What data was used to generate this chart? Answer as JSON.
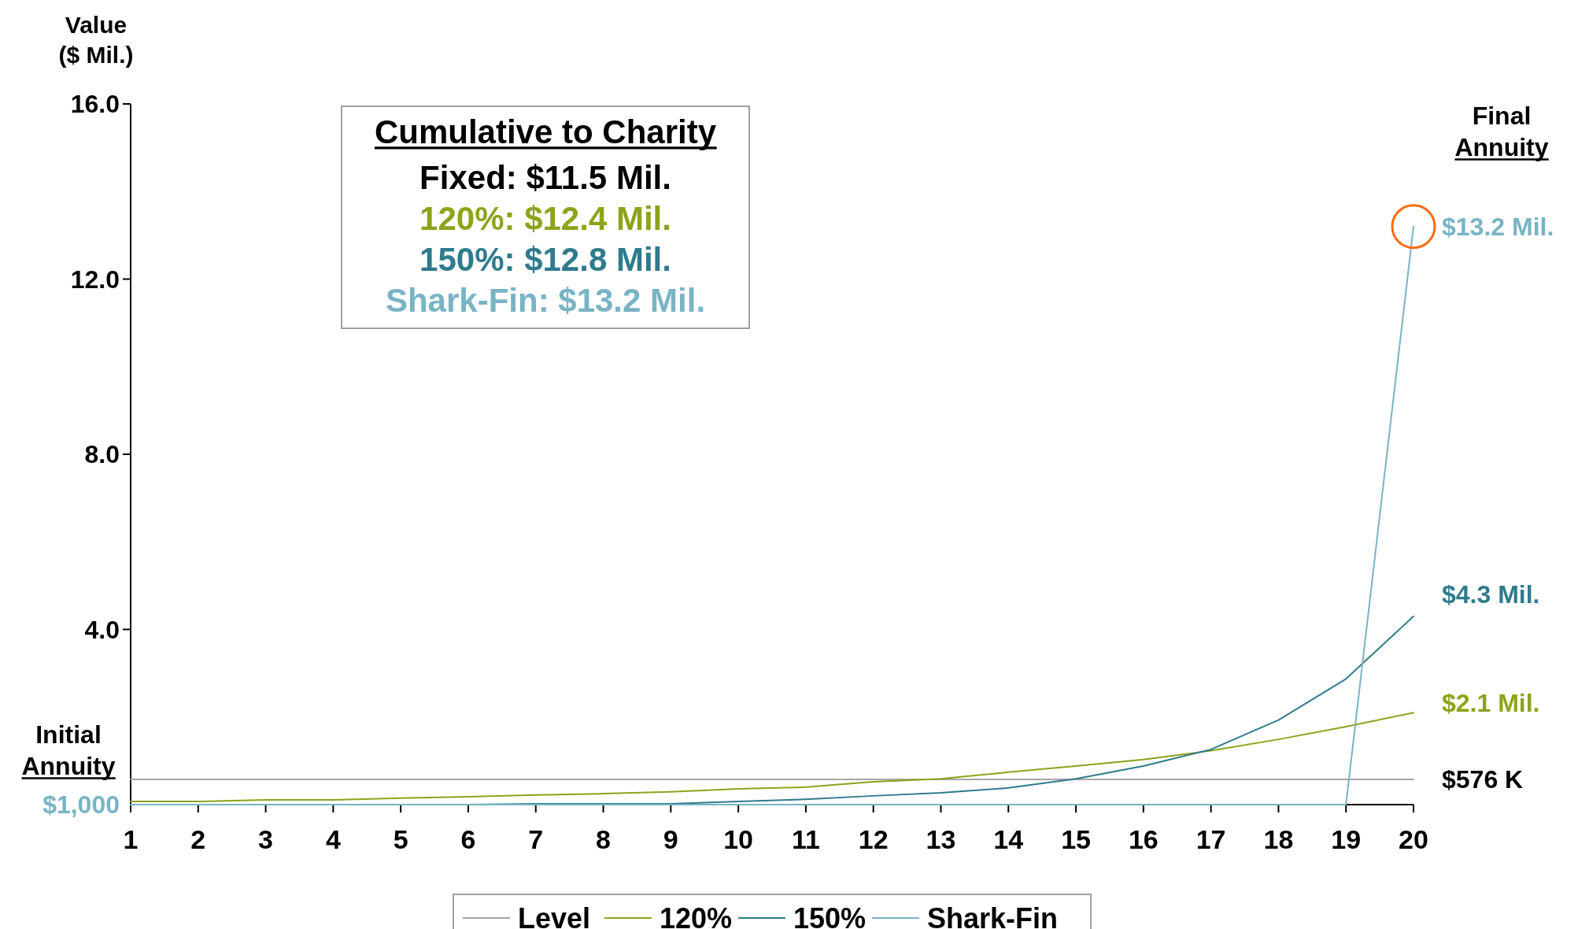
{
  "chart_data": {
    "type": "line",
    "ylabel": "Value ($ Mil.)",
    "x": [
      1,
      2,
      3,
      4,
      5,
      6,
      7,
      8,
      9,
      10,
      11,
      12,
      13,
      14,
      15,
      16,
      17,
      18,
      19,
      20
    ],
    "xlim": [
      1,
      20
    ],
    "xticks": [
      1,
      2,
      3,
      4,
      5,
      6,
      7,
      8,
      9,
      10,
      11,
      12,
      13,
      14,
      15,
      16,
      17,
      18,
      19,
      20
    ],
    "ylim": [
      0,
      16
    ],
    "yticks": [
      {
        "value": 4,
        "label": "4.0"
      },
      {
        "value": 8,
        "label": "8.0"
      },
      {
        "value": 12,
        "label": "12.0"
      },
      {
        "value": 16,
        "label": "16.0"
      }
    ],
    "series": [
      {
        "name": "Level",
        "color": "#a6a6a6",
        "values": [
          0.576,
          0.576,
          0.576,
          0.576,
          0.576,
          0.576,
          0.576,
          0.576,
          0.576,
          0.576,
          0.576,
          0.576,
          0.576,
          0.576,
          0.576,
          0.576,
          0.576,
          0.576,
          0.576,
          0.576
        ],
        "value_labels": [
          null,
          null,
          null,
          null,
          null,
          null,
          null,
          null,
          null,
          null,
          null,
          null,
          null,
          null,
          null,
          null,
          null,
          null,
          null,
          "$576 K"
        ]
      },
      {
        "name": "120%",
        "color": "#8da31b",
        "values": [
          0.07,
          0.07,
          0.11,
          0.11,
          0.15,
          0.18,
          0.22,
          0.25,
          0.29,
          0.36,
          0.4,
          0.52,
          0.59,
          0.74,
          0.88,
          1.03,
          1.23,
          1.49,
          1.78,
          2.1
        ],
        "value_labels": [
          null,
          null,
          null,
          null,
          null,
          null,
          null,
          null,
          null,
          null,
          null,
          null,
          null,
          null,
          null,
          null,
          null,
          null,
          null,
          "$2.1 Mil."
        ]
      },
      {
        "name": "150%",
        "color": "#2e7b8c",
        "values": [
          0.001,
          0.001,
          0.001,
          0.001,
          0.001,
          0.001,
          0.02,
          0.02,
          0.02,
          0.07,
          0.12,
          0.2,
          0.27,
          0.38,
          0.59,
          0.88,
          1.26,
          1.93,
          2.87,
          4.3
        ],
        "value_labels": [
          null,
          null,
          null,
          null,
          null,
          null,
          null,
          null,
          null,
          null,
          null,
          null,
          null,
          null,
          null,
          null,
          null,
          null,
          null,
          "$4.3 Mil."
        ]
      },
      {
        "name": "Shark-Fin",
        "color": "#78b4c4",
        "values": [
          0.001,
          0.001,
          0.001,
          0.001,
          0.001,
          0.001,
          0.001,
          0.001,
          0.001,
          0.001,
          0.001,
          0.001,
          0.001,
          0.001,
          0.001,
          0.001,
          0.001,
          0.001,
          0.001,
          13.2
        ],
        "value_labels": [
          null,
          null,
          null,
          null,
          null,
          null,
          null,
          null,
          null,
          null,
          null,
          null,
          null,
          null,
          null,
          null,
          null,
          null,
          null,
          "$13.2 Mil."
        ]
      }
    ],
    "annotations": [
      "Cumulative to Charity",
      "Fixed: $11.5 Mil.",
      "120%: $12.4 Mil.",
      "150%: $12.8 Mil.",
      "Shark-Fin: $13.2 Mil.",
      "Initial Annuity",
      "Final Annuity",
      {
        "text": "$1,000",
        "x": 1,
        "y": 0.001
      }
    ],
    "legend": "bottom",
    "grid": false,
    "marker": "none",
    "line_style": "solid"
  }
}
